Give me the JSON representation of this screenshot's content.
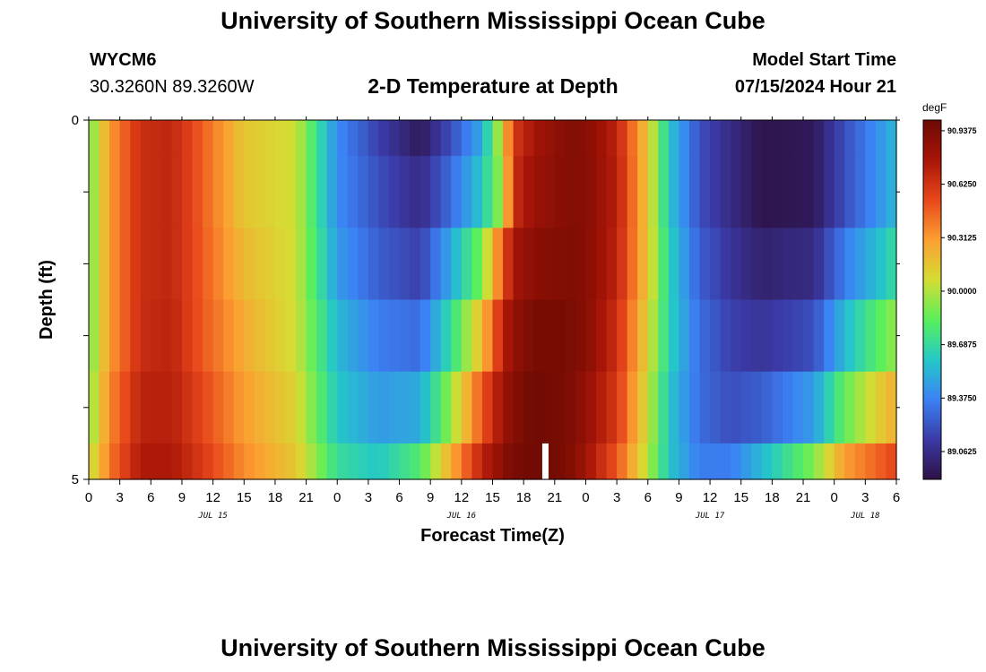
{
  "header": {
    "title": "University of Southern Mississippi Ocean Cube",
    "station": "WYCM6",
    "coordinates": "30.3260N  89.3260W",
    "subtitle": "2-D Temperature at Depth",
    "model_start_label": "Model Start Time",
    "model_start_value": "07/15/2024 Hour 21"
  },
  "footer": {
    "title": "University of Southern Mississippi Ocean Cube"
  },
  "chart_data": {
    "type": "heatmap",
    "title": "2-D Temperature at Depth",
    "xlabel": "Forecast Time(Z)",
    "ylabel": "Depth (ft)",
    "unit": "degF",
    "x_start": "07/15/2024 Hour 0",
    "x_hours": [
      0,
      78
    ],
    "ylim": [
      0,
      5
    ],
    "y_tick_labels": [
      "0",
      "5"
    ],
    "x_tick_labels": [
      "0",
      "3",
      "6",
      "9",
      "12",
      "15",
      "18",
      "21",
      "0",
      "3",
      "6",
      "9",
      "12",
      "15",
      "18",
      "21",
      "0",
      "3",
      "6",
      "9",
      "12",
      "15",
      "18",
      "21",
      "0",
      "3",
      "6"
    ],
    "date_labels": [
      {
        "hour": 12,
        "label": "JUL 15"
      },
      {
        "hour": 36,
        "label": "JUL 16"
      },
      {
        "hour": 60,
        "label": "JUL 17"
      },
      {
        "hour": 75,
        "label": "JUL 18"
      }
    ],
    "depth_bands": [
      0,
      0.5,
      1.5,
      2.5,
      3.5,
      4.5,
      5
    ],
    "colorbar": {
      "min": 88.9,
      "max": 91.0,
      "tick_values": [
        89.0625,
        89.375,
        89.6875,
        90.0,
        90.3125,
        90.625,
        90.9375
      ],
      "tick_labels": [
        "89.0625",
        "89.3750",
        "89.6875",
        "90.0000",
        "90.3125",
        "90.6250",
        "90.9375"
      ],
      "colors": [
        "#2d1145",
        "#3b3aa6",
        "#3b82f5",
        "#24c8c8",
        "#59f05c",
        "#d6dc33",
        "#fc9f31",
        "#e8471b",
        "#a81508",
        "#6b0a02"
      ]
    },
    "keyframes_hours": [
      0,
      2,
      5,
      8,
      10,
      15,
      20,
      24,
      28,
      32,
      35,
      38,
      40,
      41,
      43,
      46,
      48,
      51,
      54,
      56,
      59,
      62,
      65,
      70,
      73,
      76,
      78
    ],
    "keyframes_by_band": [
      [
        89.85,
        90.3,
        90.65,
        90.68,
        90.55,
        90.15,
        90.05,
        89.4,
        89.15,
        88.95,
        89.2,
        89.5,
        90.1,
        90.6,
        90.78,
        90.9,
        90.9,
        90.7,
        90.15,
        89.6,
        89.2,
        89.05,
        88.92,
        88.95,
        89.2,
        89.4,
        89.55
      ],
      [
        89.85,
        90.3,
        90.65,
        90.68,
        90.55,
        90.15,
        90.05,
        89.4,
        89.2,
        89.05,
        89.3,
        89.6,
        90.0,
        90.65,
        90.82,
        90.9,
        90.9,
        90.72,
        90.15,
        89.6,
        89.2,
        89.05,
        88.92,
        88.95,
        89.2,
        89.4,
        89.55
      ],
      [
        89.85,
        90.3,
        90.65,
        90.68,
        90.55,
        90.2,
        90.05,
        89.45,
        89.25,
        89.15,
        89.5,
        89.9,
        90.5,
        90.78,
        90.88,
        90.92,
        90.9,
        90.7,
        90.15,
        89.65,
        89.25,
        89.1,
        89.0,
        89.05,
        89.35,
        89.55,
        89.7
      ],
      [
        89.85,
        90.3,
        90.65,
        90.7,
        90.55,
        90.25,
        90.05,
        89.55,
        89.35,
        89.3,
        89.7,
        90.2,
        90.7,
        90.85,
        90.95,
        90.95,
        90.9,
        90.65,
        90.1,
        89.65,
        89.3,
        89.15,
        89.1,
        89.2,
        89.55,
        89.8,
        89.95
      ],
      [
        89.9,
        90.35,
        90.7,
        90.72,
        90.6,
        90.3,
        90.1,
        89.6,
        89.45,
        89.5,
        89.95,
        90.5,
        90.8,
        90.9,
        90.98,
        90.95,
        90.85,
        90.6,
        90.05,
        89.6,
        89.3,
        89.2,
        89.25,
        89.45,
        89.85,
        90.1,
        90.25
      ],
      [
        90.0,
        90.4,
        90.75,
        90.75,
        90.65,
        90.35,
        90.15,
        89.7,
        89.6,
        89.8,
        90.25,
        90.7,
        90.88,
        90.95,
        90.98,
        90.95,
        90.8,
        90.5,
        90.0,
        89.6,
        89.35,
        89.35,
        89.55,
        89.9,
        90.3,
        90.45,
        90.55
      ]
    ]
  }
}
